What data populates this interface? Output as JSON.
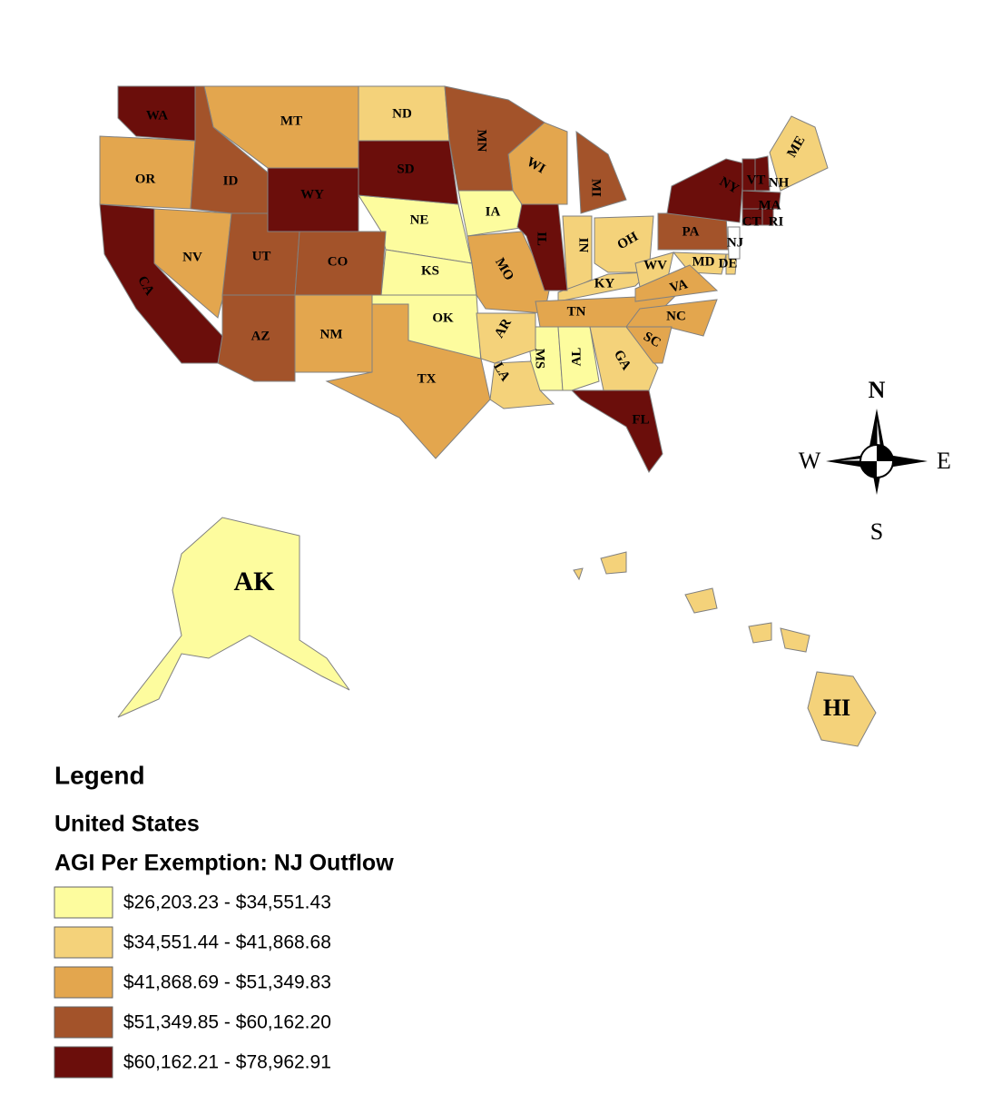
{
  "map": {
    "classes": [
      {
        "label": "$26,203.23 - $34,551.43",
        "color": "#fdfc9e",
        "states": [
          "NE",
          "KS",
          "OK",
          "IA",
          "MS",
          "AL",
          "AK"
        ]
      },
      {
        "label": "$34,551.44 - $41,868.68",
        "color": "#f4d27a",
        "states": [
          "ND",
          "IN",
          "OH",
          "KY",
          "WV",
          "MD",
          "DE",
          "GA",
          "AR",
          "LA",
          "ME",
          "HI"
        ]
      },
      {
        "label": "$41,868.69 - $51,349.83",
        "color": "#e3a64e",
        "states": [
          "OR",
          "MT",
          "NV",
          "NM",
          "TX",
          "MO",
          "WI",
          "TN",
          "VA",
          "NC",
          "SC"
        ]
      },
      {
        "label": "$51,349.85 - $60,162.20",
        "color": "#a3532a",
        "states": [
          "ID",
          "UT",
          "CO",
          "AZ",
          "MN",
          "MI",
          "PA"
        ]
      },
      {
        "label": "$60,162.21 - $78,962.91",
        "color": "#6b0e0b",
        "states": [
          "WA",
          "CA",
          "WY",
          "SD",
          "IL",
          "FL",
          "NY",
          "VT",
          "NH",
          "MA",
          "CT",
          "RI"
        ]
      }
    ],
    "no_data_states": [
      "NJ"
    ],
    "no_data_color": "#ffffff"
  },
  "compass": {
    "n": "N",
    "s": "S",
    "e": "E",
    "w": "W"
  },
  "legend": {
    "title": "Legend",
    "layer": "United States",
    "field": "AGI Per Exemption: NJ Outflow"
  }
}
